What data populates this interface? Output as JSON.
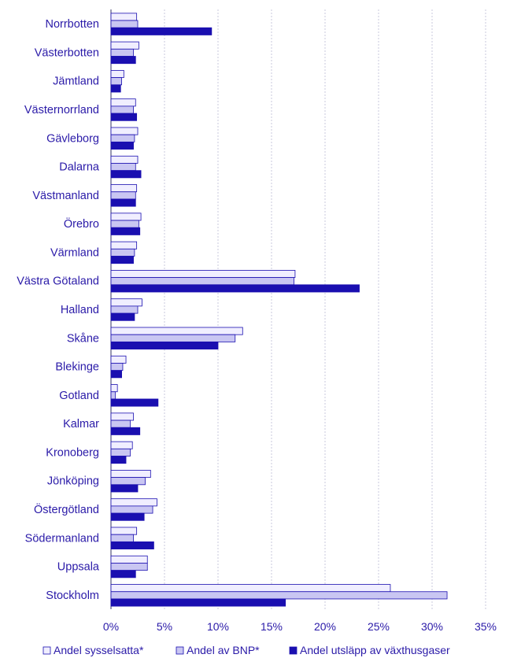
{
  "chart_data": {
    "type": "bar",
    "orientation": "horizontal",
    "categories": [
      "Norrbotten",
      "Västerbotten",
      "Jämtland",
      "Västernorrland",
      "Gävleborg",
      "Dalarna",
      "Västmanland",
      "Örebro",
      "Värmland",
      "Västra Götaland",
      "Halland",
      "Skåne",
      "Blekinge",
      "Gotland",
      "Kalmar",
      "Kronoberg",
      "Jönköping",
      "Östergötland",
      "Södermanland",
      "Uppsala",
      "Stockholm"
    ],
    "series": [
      {
        "name": "Andel sysselsatta*",
        "color": "#f0eeff",
        "values": [
          2.4,
          2.6,
          1.2,
          2.3,
          2.5,
          2.5,
          2.4,
          2.8,
          2.4,
          17.2,
          2.9,
          12.3,
          1.4,
          0.6,
          2.1,
          2.0,
          3.7,
          4.3,
          2.4,
          3.4,
          26.1
        ]
      },
      {
        "name": "Andel av BNP*",
        "color": "#c9c6f2",
        "values": [
          2.5,
          2.1,
          1.0,
          2.1,
          2.2,
          2.3,
          2.3,
          2.6,
          2.2,
          17.1,
          2.5,
          11.6,
          1.1,
          0.4,
          1.8,
          1.8,
          3.2,
          3.9,
          2.1,
          3.4,
          31.4
        ]
      },
      {
        "name": "Andel utsläpp av växthusgaser",
        "color": "#1a0fb0",
        "values": [
          9.4,
          2.3,
          0.9,
          2.4,
          2.1,
          2.8,
          2.3,
          2.7,
          2.1,
          23.2,
          2.2,
          10.0,
          1.0,
          4.4,
          2.7,
          1.4,
          2.5,
          3.1,
          4.0,
          2.3,
          16.3
        ]
      }
    ],
    "x_ticks": [
      "0%",
      "5%",
      "10%",
      "15%",
      "20%",
      "25%",
      "30%",
      "35%"
    ],
    "xlim": [
      0,
      35
    ],
    "grid": true,
    "legend_position": "bottom"
  }
}
